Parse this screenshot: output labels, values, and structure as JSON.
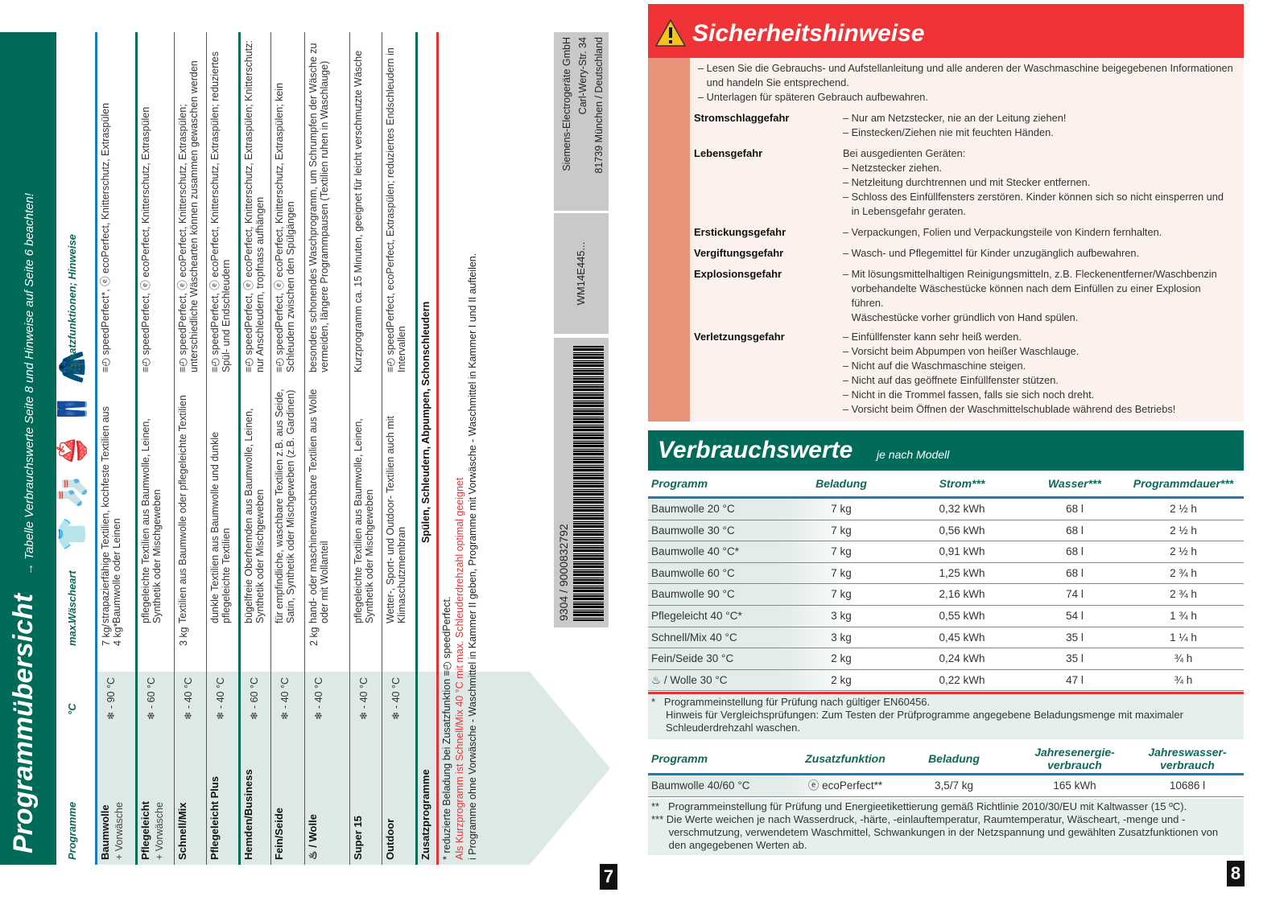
{
  "left": {
    "title": "Programmübersicht",
    "subtitle": "→ Tabelle Verbrauchswerte Seite 8 und Hinweise auf Seite 6 beachten!",
    "headers": {
      "programme": "Programme",
      "temp": "°C",
      "max": "max.",
      "waescheart": "Wäscheart",
      "zusatz": "Zusatzfunktionen; Hinweise"
    },
    "rows": [
      {
        "name": "Baumwolle",
        "sub": "+ Vorwäsche",
        "temp": "❄ - 90 °C",
        "max": "7 kg/\n4 kg*",
        "desc": "strapazierfähige Textilien, kochfeste Textilien aus Baumwolle oder Leinen",
        "zusatz": "≡◴ speedPerfect*, ⓔ ecoPerfect, Knitterschutz, Extraspülen"
      },
      {
        "name": "Pflegeleicht",
        "sub": "+ Vorwäsche",
        "temp": "❄ - 60 °C",
        "max": "",
        "desc": "pflegeleichte Textilien aus Baumwolle, Leinen, Synthetik oder Mischgeweben",
        "zusatz": "≡◴ speedPerfect, ⓔ ecoPerfect, Knitterschutz, Extraspülen"
      },
      {
        "name": "Schnell/Mix",
        "sub": "",
        "temp": "❄ - 40 °C",
        "max": "3 kg",
        "desc": "Textilien aus Baumwolle oder pflegeleichte Textilien",
        "zusatz": "≡◴ speedPerfect, ⓔ ecoPerfect, Knitterschutz, Extraspülen; unterschiedliche Wäschearten können zusammen gewaschen werden"
      },
      {
        "name": "Pflegeleicht Plus",
        "sub": "",
        "temp": "❄ - 40 °C",
        "max": "",
        "desc": "dunkle Textilien aus Baumwolle und dunkle pflegeleichte Textilien",
        "zusatz": "≡◴ speedPerfect, ⓔ ecoPerfect, Knitterschutz, Extraspülen; reduziertes Spül- und Endschleudern"
      },
      {
        "name": "Hemden/Business",
        "sub": "",
        "temp": "❄ - 60 °C",
        "max": "",
        "desc": "bügelfreie Oberhemden aus Baumwolle, Leinen, Synthetik oder Mischgeweben",
        "zusatz": "≡◴ speedPerfect, ⓔ ecoPerfect, Knitterschutz, Extraspülen; Knitterschutz: nur Anschleudern, tropfnass aufhängen"
      },
      {
        "name": "Fein/Seide",
        "sub": "",
        "temp": "❄ - 40 °C",
        "max": "",
        "desc": "für empfindliche, waschbare Textilien z.B. aus Seide, Satin, Synthetik oder Mischgeweben (z.B. Gardinen)",
        "zusatz": "≡◴ speedPerfect, ⓔ ecoPerfect, Knitterschutz, Extraspülen; kein Schleudern zwischen den Spülgängen"
      },
      {
        "name": "♨ / Wolle",
        "sub": "",
        "temp": "❄ - 40 °C",
        "max": "2 kg",
        "desc": "hand- oder maschinenwaschbare Textilien aus Wolle oder mit Wollanteil",
        "zusatz": "besonders schonendes Waschprogramm, um Schrumpfen der Wäsche zu vermeiden, längere Programmpausen (Textilien ruhen in Waschlauge)"
      },
      {
        "name": "Super 15",
        "sub": "",
        "temp": "❄ - 40 °C",
        "max": "",
        "desc": "pflegeleichte Textilien aus Baumwolle, Leinen, Synthetik oder Mischgeweben",
        "zusatz": "Kurzprogramm ca. 15 Minuten, geeignet für leicht verschmutzte Wäsche"
      },
      {
        "name": "Outdoor",
        "sub": "",
        "temp": "❄ - 40 °C",
        "max": "",
        "desc": "Wetter-, Sport- und Outdoor- Textilien auch mit Klimaschutzmembran",
        "zusatz": "≡◴ speedPerfect, ecoPerfect, Extraspülen; reduziertes Endschleudern in Intervallen"
      }
    ],
    "zusatzprogramme": {
      "label": "Zusatzprogramme",
      "value": "Spülen, Schleudern, Abpumpen, Schonschleudern"
    },
    "footnotes": [
      "* reduzierte Beladung bei Zusatzfunktion ≡◴ speedPerfect.",
      "Als Kurzprogramm ist Schnell/Mix 40 °C mit max. Schleuderdrehzahl optimal geeignet",
      "i Programme ohne Vorwäsche - Waschmittel in Kammer II geben, Programme mit Vorwäsche - Waschmittel in Kammer I und II aufteilen."
    ],
    "address": [
      "Siemens-Electrogeräte GmbH",
      "Carl-Wery-Str. 34",
      "81739 München / Deutschland"
    ],
    "model": "WM14E445...",
    "barcode": "9304 / 9000832792",
    "page": "7"
  },
  "right": {
    "safety": {
      "title": "Sicherheitshinweise",
      "intro": [
        "– Lesen Sie die Gebrauchs- und Aufstellanleitung und alle anderen der Waschmaschine beigegebenen Informationen",
        "   und handeln Sie entsprechend.",
        "– Unterlagen für späteren Gebrauch aufbewahren."
      ],
      "items": [
        {
          "label": "Stromschlaggefahr",
          "lines": [
            "– Nur am Netzstecker, nie an der Leitung ziehen!",
            "– Einstecken/Ziehen nie mit feuchten Händen."
          ]
        },
        {
          "label": "Lebensgefahr",
          "lines": [
            "Bei ausgedienten Geräten:",
            "– Netzstecker ziehen.",
            "– Netzleitung durchtrennen und mit Stecker entfernen.",
            "– Schloss des Einfüllfensters zerstören. Kinder können sich so nicht einsperren und",
            "   in Lebensgefahr geraten."
          ]
        },
        {
          "label": "Erstickungsgefahr",
          "lines": [
            "– Verpackungen, Folien und Verpackungsteile von Kindern fernhalten."
          ]
        },
        {
          "label": "Vergiftungsgefahr",
          "lines": [
            "– Wasch- und Pflegemittel für Kinder unzugänglich aufbewahren."
          ]
        },
        {
          "label": "Explosionsgefahr",
          "lines": [
            "– Mit lösungsmittelhaltigen Reinigungsmitteln, z.B. Fleckenentferner/Waschbenzin",
            "   vorbehandelte Wäschestücke können nach dem Einfüllen zu einer Explosion",
            "   führen.",
            "   Wäschestücke vorher gründlich von Hand spülen."
          ]
        },
        {
          "label": "Verletzungsgefahr",
          "lines": [
            "– Einfüllfenster kann sehr heiß werden.",
            "– Vorsicht beim Abpumpen von heißer Waschlauge.",
            "– Nicht auf die Waschmaschine steigen.",
            "– Nicht auf das geöffnete Einfüllfenster stützen.",
            "– Nicht in die Trommel fassen, falls sie sich noch dreht.",
            "– Vorsicht beim Öffnen der Waschmittelschublade während des Betriebs!"
          ]
        }
      ]
    },
    "consumption": {
      "title": "Verbrauchswerte",
      "subtitle": "je nach Modell",
      "headers": [
        "Programm",
        "Beladung",
        "Strom***",
        "Wasser***",
        "Programmdauer***"
      ],
      "rows": [
        [
          "Baumwolle 20 °C",
          "7 kg",
          "0,32 kWh",
          "68 l",
          "2 ½ h"
        ],
        [
          "Baumwolle 30 °C",
          "7 kg",
          "0,56 kWh",
          "68 l",
          "2 ½ h"
        ],
        [
          "Baumwolle 40 °C*",
          "7 kg",
          "0,91 kWh",
          "68 l",
          "2 ½ h"
        ],
        [
          "Baumwolle 60 °C",
          "7 kg",
          "1,25 kWh",
          "68 l",
          "2 ¾ h"
        ],
        [
          "Baumwolle 90 °C",
          "7 kg",
          "2,16 kWh",
          "74 l",
          "2 ¾ h"
        ],
        [
          "Pflegeleicht 40 °C*",
          "3 kg",
          "0,55 kWh",
          "54 l",
          "1 ¾ h"
        ],
        [
          "Schnell/Mix 40 °C",
          "3 kg",
          "0,45 kWh",
          "35 l",
          "1 ¼ h"
        ],
        [
          "Fein/Seide 30 °C",
          "2 kg",
          "0,24 kWh",
          "35 l",
          "¾ h"
        ],
        [
          "♨ / Wolle 30 °C",
          "2 kg",
          "0,22 kWh",
          "47 l",
          "¾ h"
        ]
      ],
      "note1": [
        "*   Programmeinstellung für Prüfung nach gültiger EN60456.",
        "     Hinweis für Vergleichsprüfungen: Zum Testen der Prüfprogramme angegebene Beladungsmenge mit maximaler",
        "     Schleuderdrehzahl waschen."
      ],
      "headers2": [
        "Programm",
        "Zusatzfunktion",
        "Beladung",
        "Jahresenergie-\nverbrauch",
        "Jahreswasser-\nverbrauch"
      ],
      "row2": [
        "Baumwolle 40/60 °C",
        "ⓔ ecoPerfect**",
        "3,5/7 kg",
        "165 kWh",
        "10686 l"
      ],
      "note2": [
        "**   Programmeinstellung für Prüfung und Energieetikettierung gemäß Richtlinie 2010/30/EU mit Kaltwasser (15 ºC).",
        "*** Die Werte weichen je nach Wasserdruck, -härte, -einlauftemperatur, Raumtemperatur, Wäscheart, -menge und -",
        "      verschmutzung, verwendetem Waschmittel, Schwankungen in der Netzspannung und gewählten Zusatzfunktionen von",
        "      den angegebenen Werten ab."
      ]
    },
    "page": "8"
  },
  "colors": {
    "green": "#006b58",
    "red": "#ef3336",
    "salmon": "#e8927a",
    "blue": "#1d7bb8"
  }
}
